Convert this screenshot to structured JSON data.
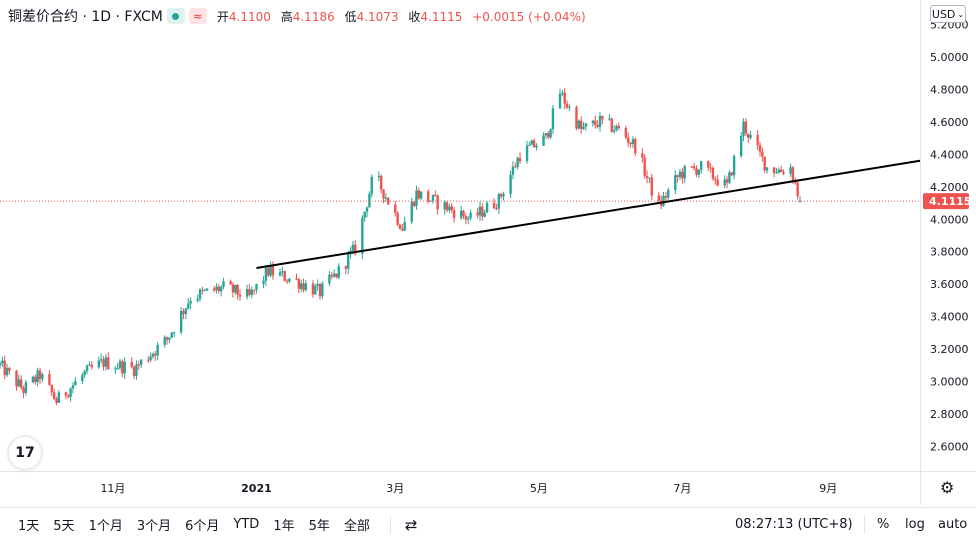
{
  "header": {
    "symbol": "铜差价合约 · 1D · FXCM",
    "o_label": "开",
    "o_value": "4.1100",
    "h_label": "高",
    "h_value": "4.1186",
    "l_label": "低",
    "l_value": "4.1073",
    "c_label": "收",
    "c_value": "4.1115",
    "change": "+0.0015 (+0.04%)"
  },
  "currency_label": "USD",
  "logo_text": "17",
  "colors": {
    "up": "#26a69a",
    "down": "#ef5350",
    "trendline": "#000000",
    "price_line": "#ef5350"
  },
  "bottom_bar": {
    "ranges": [
      "1天",
      "5天",
      "1个月",
      "3个月",
      "6个月",
      "YTD",
      "1年",
      "5年",
      "全部"
    ],
    "compare_icon": "calendar-range-icon",
    "time": "08:27:13 (UTC+8)",
    "percent": "%",
    "log": "log",
    "auto": "auto"
  },
  "chart_data": {
    "type": "candlestick",
    "y_ticks": [
      2.6,
      2.8,
      3.0,
      3.2,
      3.4,
      3.6,
      3.8,
      4.0,
      4.2,
      4.4,
      4.6,
      4.8,
      5.0,
      5.2
    ],
    "y_tick_labels": [
      "2.6000",
      "2.8000",
      "3.0000",
      "3.2000",
      "3.4000",
      "3.6000",
      "3.8000",
      "4.0000",
      "4.2000",
      "4.4000",
      "4.6000",
      "4.8000",
      "5.0000",
      "5.2000"
    ],
    "ylim": [
      2.45,
      5.35
    ],
    "x_tick_labels": [
      "11月",
      "2021",
      "3月",
      "5月",
      "7月",
      "9月"
    ],
    "x_tick_dates": [
      "2020-11-01",
      "2021-01-01",
      "2021-03-01",
      "2021-05-01",
      "2021-07-01",
      "2021-09-01"
    ],
    "x_start": "2020-09-14",
    "x_end": "2021-10-10",
    "last_price": 4.1115,
    "last_price_label": "4.1115",
    "trendline": {
      "start": [
        "2021-01-01",
        3.7
      ],
      "end": [
        "2021-10-10",
        4.36
      ]
    },
    "path_dates": [
      "2020-09-14",
      "2020-09-24",
      "2020-10-01",
      "2020-10-08",
      "2020-10-20",
      "2020-10-28",
      "2020-11-10",
      "2020-11-24",
      "2020-12-04",
      "2020-12-18",
      "2020-12-29",
      "2021-01-06",
      "2021-01-18",
      "2021-01-28",
      "2021-02-05",
      "2021-02-12",
      "2021-02-20",
      "2021-02-25",
      "2021-03-04",
      "2021-03-10",
      "2021-03-22",
      "2021-04-02",
      "2021-04-14",
      "2021-04-23",
      "2021-05-04",
      "2021-05-10",
      "2021-05-19",
      "2021-05-27",
      "2021-06-04",
      "2021-06-11",
      "2021-06-18",
      "2021-06-21",
      "2021-06-30",
      "2021-07-09",
      "2021-07-20",
      "2021-07-27",
      "2021-08-02",
      "2021-08-06",
      "2021-08-12",
      "2021-08-16",
      "2021-08-20"
    ],
    "path_closes": [
      3.1,
      2.95,
      3.04,
      2.88,
      3.05,
      3.12,
      3.08,
      3.26,
      3.52,
      3.58,
      3.52,
      3.68,
      3.62,
      3.55,
      3.68,
      3.82,
      4.28,
      4.14,
      3.95,
      4.16,
      4.08,
      4.0,
      4.12,
      4.4,
      4.5,
      4.78,
      4.55,
      4.6,
      4.55,
      4.45,
      4.18,
      4.08,
      4.28,
      4.32,
      4.2,
      4.58,
      4.42,
      4.32,
      4.3,
      4.32,
      4.11
    ]
  }
}
